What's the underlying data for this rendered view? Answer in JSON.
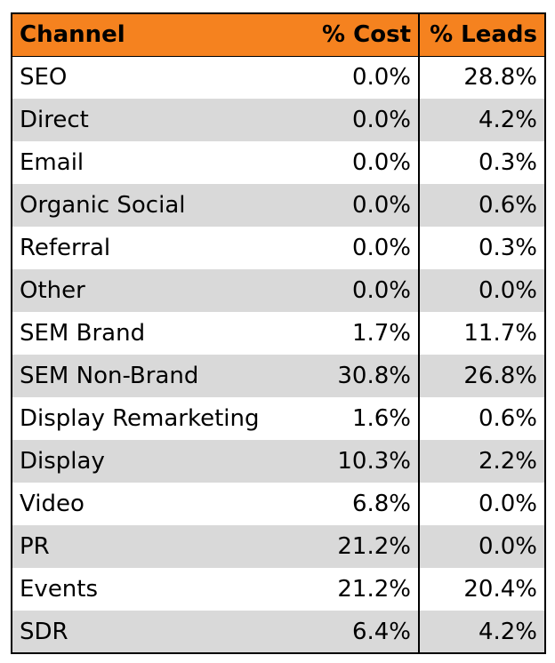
{
  "table": {
    "header": [
      "Channel",
      "% Cost",
      "% Leads"
    ],
    "rows": [
      [
        "SEO",
        "0.0%",
        "28.8%"
      ],
      [
        "Direct",
        "0.0%",
        "4.2%"
      ],
      [
        "Email",
        "0.0%",
        "0.3%"
      ],
      [
        "Organic Social",
        "0.0%",
        "0.6%"
      ],
      [
        "Referral",
        "0.0%",
        "0.3%"
      ],
      [
        "Other",
        "0.0%",
        "0.0%"
      ],
      [
        "SEM Brand",
        "1.7%",
        "11.7%"
      ],
      [
        "SEM Non-Brand",
        "30.8%",
        "26.8%"
      ],
      [
        "Display Remarketing",
        "1.6%",
        "0.6%"
      ],
      [
        "Display",
        "10.3%",
        "2.2%"
      ],
      [
        "Video",
        "6.8%",
        "0.0%"
      ],
      [
        "PR",
        "21.2%",
        "0.0%"
      ],
      [
        "Events",
        "21.2%",
        "20.4%"
      ],
      [
        "SDR",
        "6.4%",
        "4.2%"
      ]
    ]
  }
}
